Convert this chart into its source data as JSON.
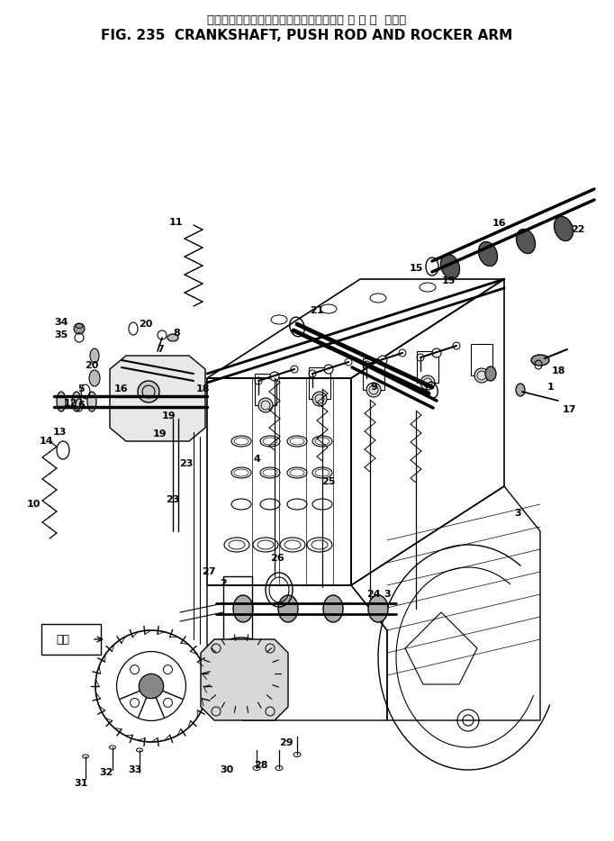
{
  "title_japanese": "クランクシャフト、プッシュロッドおよび ロ ッ カ  アーム",
  "title_english": "FIG. 235  CRANKSHAFT, PUSH ROD AND ROCKER ARM",
  "bg_color": "#ffffff",
  "line_color": "#000000",
  "fig_width": 6.82,
  "fig_height": 9.34,
  "dpi": 100
}
